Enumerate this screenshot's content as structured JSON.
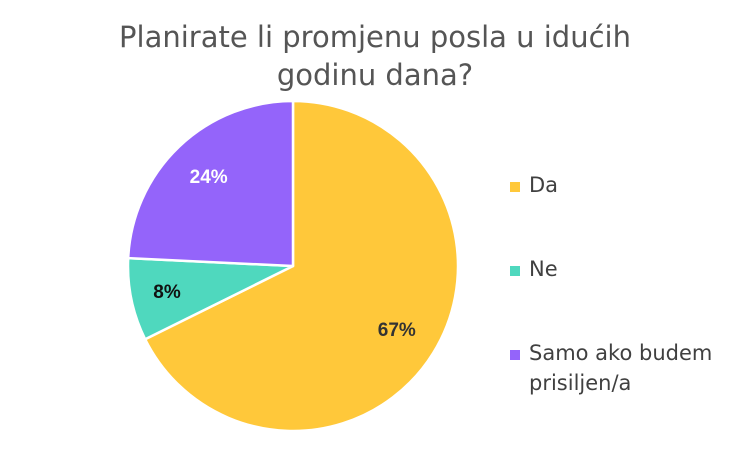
{
  "chart_data": {
    "type": "pie",
    "title": "Planirate li promjenu posla u idućih godinu dana?",
    "categories": [
      "Da",
      "Ne",
      "Samo ako budem prisiljen/a"
    ],
    "values": [
      67,
      8,
      24
    ],
    "data_labels": [
      "67%",
      "8%",
      "24%"
    ],
    "colors": [
      "#ffc83a",
      "#4fd8be",
      "#9464fa"
    ],
    "label_colors": [
      "#333333",
      "#111111",
      "#ffffff"
    ],
    "start_angle_deg": 0,
    "direction": "clockwise",
    "legend": "right"
  }
}
